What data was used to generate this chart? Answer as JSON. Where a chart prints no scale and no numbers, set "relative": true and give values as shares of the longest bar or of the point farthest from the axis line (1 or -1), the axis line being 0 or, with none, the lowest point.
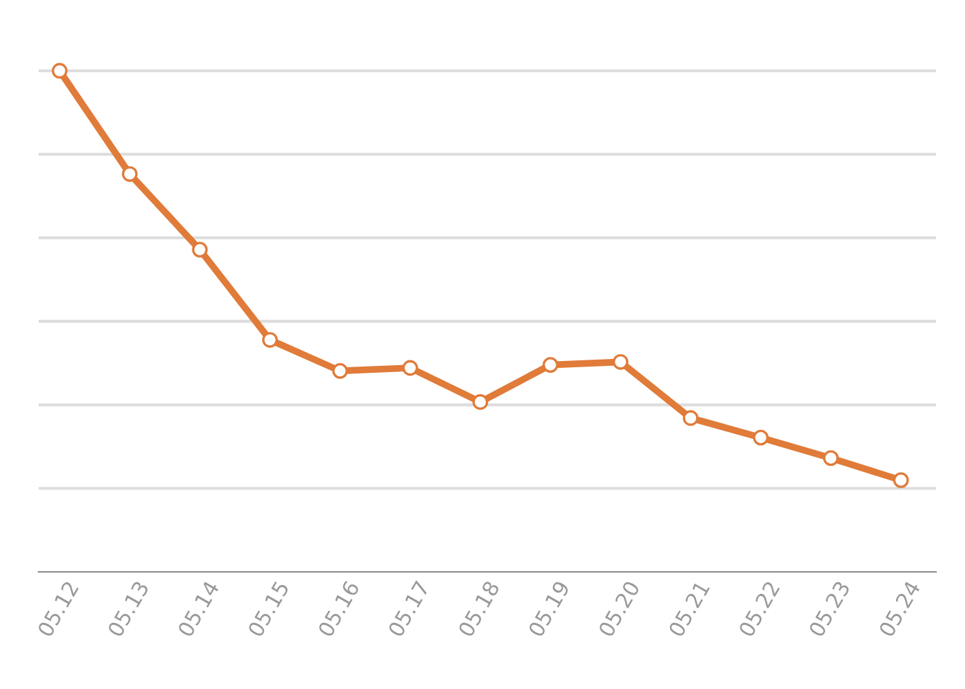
{
  "chart_data": {
    "type": "line",
    "relative": true,
    "categories": [
      "05.12",
      "05.13",
      "05.14",
      "05.15",
      "05.16",
      "05.17",
      "05.18",
      "05.19",
      "05.20",
      "05.21",
      "05.22",
      "05.23",
      "05.24"
    ],
    "series": [
      {
        "color": "#e07b39",
        "values": [
          1,
          0.794,
          0.643,
          0.463,
          0.401,
          0.407,
          0.339,
          0.413,
          0.419,
          0.307,
          0.268,
          0.227,
          0.183
        ]
      }
    ],
    "grid": "y",
    "marker": "circle",
    "line_style": "solid",
    "legend": false
  }
}
